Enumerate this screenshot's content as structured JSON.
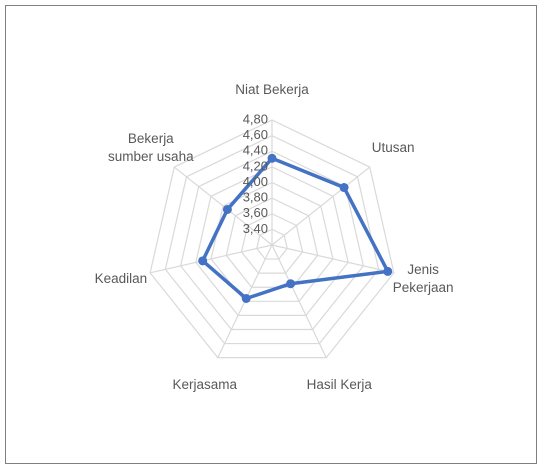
{
  "chart_data": {
    "type": "radar",
    "categories": [
      "Niat Bekerja",
      "Utusan",
      "Jenis\nPekerjaan",
      "Hasil Kerja",
      "Kerjasama",
      "Keadilan",
      "Bekerja\nsumber usaha"
    ],
    "series": [
      {
        "color": "#4472c4",
        "values": [
          4.31,
          4.38,
          4.72,
          3.75,
          3.96,
          4.11,
          3.93
        ]
      }
    ],
    "ylim": [
      3.2,
      4.8
    ],
    "yticks": [
      {
        "value": 3.4,
        "label": "3,40"
      },
      {
        "value": 3.6,
        "label": "3,60"
      },
      {
        "value": 3.8,
        "label": "3,80"
      },
      {
        "value": 4.0,
        "label": "4,00"
      },
      {
        "value": 4.2,
        "label": "4,20"
      },
      {
        "value": 4.4,
        "label": "4,40"
      },
      {
        "value": 4.6,
        "label": "4,60"
      },
      {
        "value": 4.8,
        "label": "4,80"
      }
    ],
    "grid": true
  }
}
